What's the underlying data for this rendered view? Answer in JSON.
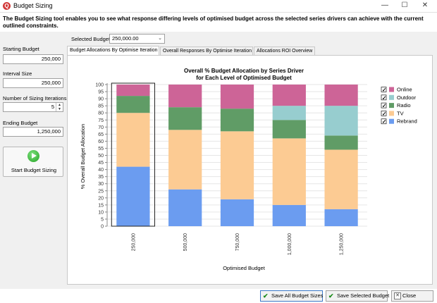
{
  "window": {
    "title": "Budget Sizing",
    "app_icon": "Q"
  },
  "intro_text": "The Budget Sizing tool enables you to see what response differing levels of optimised budget across the selected series drivers can achieve with the current outlined constraints.",
  "left_panel": {
    "starting_budget_label": "Starting Budget",
    "starting_budget_value": "250,000",
    "interval_size_label": "Interval Size",
    "interval_size_value": "250,000",
    "iterations_label": "Number of Sizing Iterations",
    "iterations_value": "5",
    "ending_budget_label": "Ending Budget",
    "ending_budget_value": "1,250,000",
    "start_button_label": "Start Budget Sizing"
  },
  "selected_budget": {
    "label": "Selected Budget",
    "value": "250,000.00"
  },
  "tabs": [
    {
      "label": "Budget Allocations By Optimise Iteration",
      "active": true
    },
    {
      "label": "Overall Responses By Optimise Iteration",
      "active": false
    },
    {
      "label": "Allocations ROI Overview",
      "active": false
    }
  ],
  "chart_data": {
    "type": "bar",
    "stacked": true,
    "title": "Overall % Budget Allocation by Series Driver",
    "subtitle": "for Each Level of Optimised Budget",
    "xlabel": "Optimised Budget",
    "ylabel": "% Overall Budget Allocation",
    "ylim": [
      0,
      100
    ],
    "yticks": [
      0,
      5,
      10,
      15,
      20,
      25,
      30,
      35,
      40,
      45,
      50,
      55,
      60,
      65,
      70,
      75,
      80,
      85,
      90,
      95,
      100
    ],
    "categories": [
      "250,000",
      "500,000",
      "750,000",
      "1,000,000",
      "1,250,000"
    ],
    "selected_category": "250,000",
    "series": [
      {
        "name": "Rebrand",
        "color": "#6b9cf0",
        "values": [
          42,
          26,
          19,
          15,
          12
        ]
      },
      {
        "name": "TV",
        "color": "#fccb93",
        "values": [
          38,
          42,
          48,
          47,
          42
        ]
      },
      {
        "name": "Radio",
        "color": "#609c66",
        "values": [
          12,
          16,
          16,
          13,
          10
        ]
      },
      {
        "name": "Outdoor",
        "color": "#97cdcf",
        "values": [
          0,
          0,
          0,
          10,
          21
        ]
      },
      {
        "name": "Online",
        "color": "#cd6497",
        "values": [
          8,
          16,
          17,
          15,
          15
        ]
      }
    ],
    "legend_order": [
      "Online",
      "Outdoor",
      "Radio",
      "TV",
      "Rebrand"
    ],
    "legend_position": "right",
    "grid": true
  },
  "bottom_buttons": {
    "save_all": "Save All Budget Sizes",
    "save_selected": "Save Selected Budget",
    "close": "Close"
  }
}
